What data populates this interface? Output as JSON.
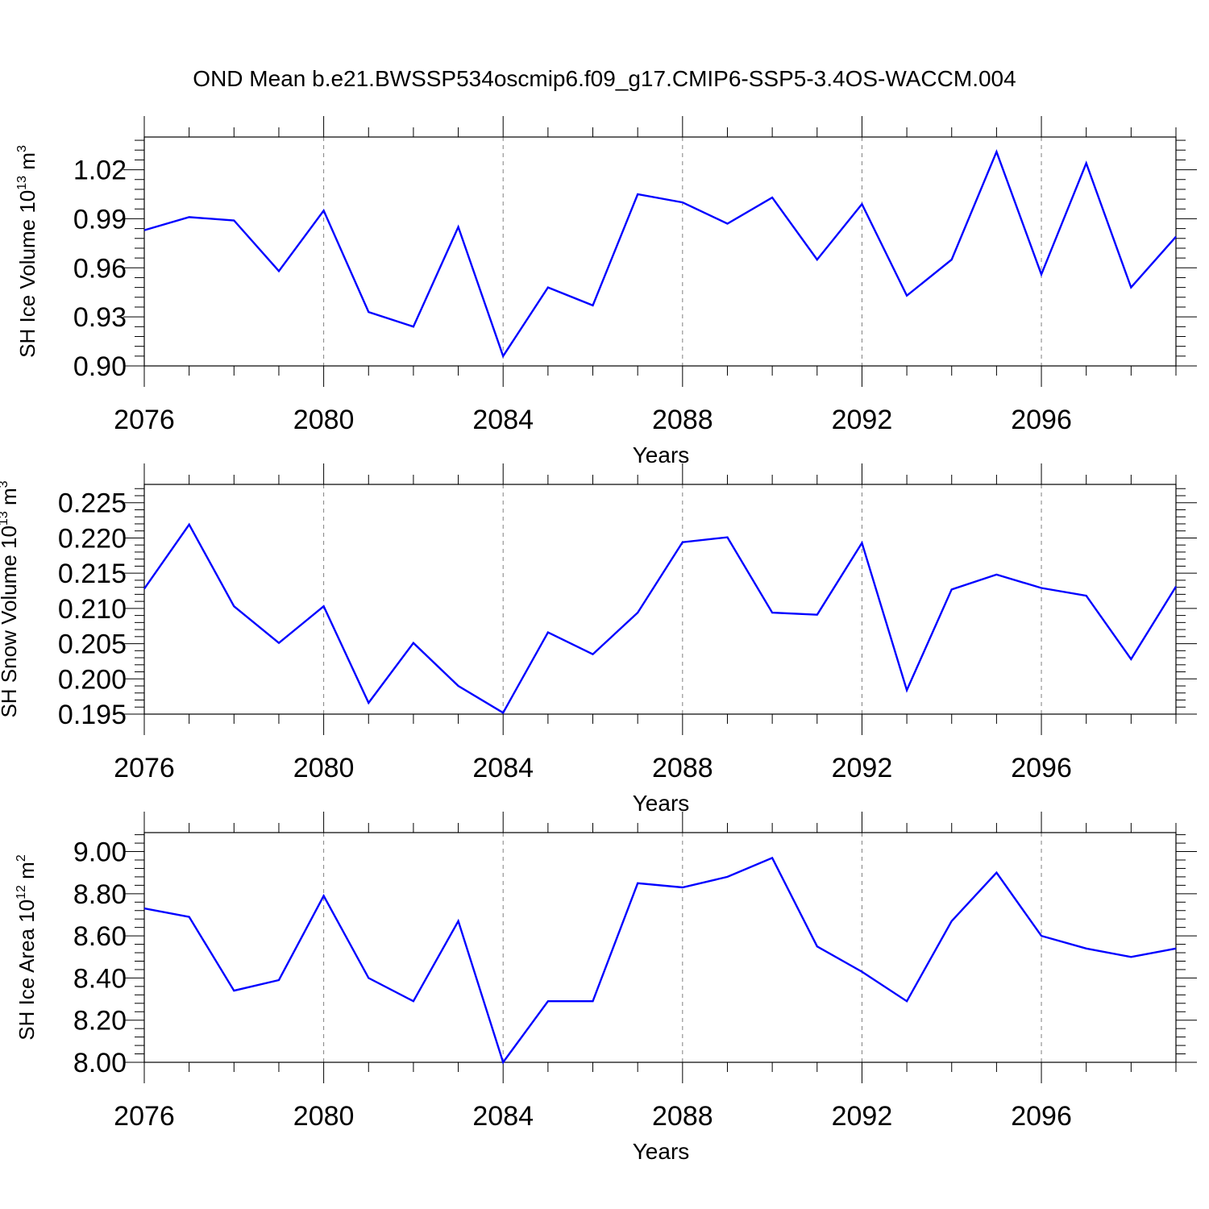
{
  "title": "OND Mean b.e21.BWSSP534oscmip6.f09_g17.CMIP6-SSP5-3.4OS-WACCM.004",
  "colors": {
    "line": "#0000ff",
    "axis": "#000000",
    "grid": "#808080"
  },
  "chart_data": [
    {
      "type": "line",
      "xlabel": "Years",
      "ylabel": {
        "text": "SH Ice Volume 10",
        "exponent": "13",
        "unit": " m",
        "unit_exponent": "3"
      },
      "xlim": [
        2076,
        2099
      ],
      "ylim": [
        0.9,
        1.04
      ],
      "yticks": [
        0.9,
        0.93,
        0.96,
        0.99,
        1.02
      ],
      "ytick_labels": [
        "0.90",
        "0.93",
        "0.96",
        "0.99",
        "1.02"
      ],
      "xticks": [
        2076,
        2080,
        2084,
        2088,
        2092,
        2096
      ],
      "xtick_labels": [
        "2076",
        "2080",
        "2084",
        "2088",
        "2092",
        "2096"
      ],
      "grid": "vertical dashed at major x ticks",
      "x": [
        2076,
        2077,
        2078,
        2079,
        2080,
        2081,
        2082,
        2083,
        2084,
        2085,
        2086,
        2087,
        2088,
        2089,
        2090,
        2091,
        2092,
        2093,
        2094,
        2095,
        2096,
        2097,
        2098,
        2099
      ],
      "y": [
        0.983,
        0.991,
        0.989,
        0.958,
        0.995,
        0.933,
        0.924,
        0.985,
        0.906,
        0.948,
        0.937,
        1.005,
        1.0,
        0.987,
        1.003,
        0.965,
        0.999,
        0.943,
        0.965,
        1.031,
        0.956,
        1.024,
        0.948,
        0.979
      ]
    },
    {
      "type": "line",
      "xlabel": "Years",
      "ylabel": {
        "text": "SH Snow Volume 10",
        "exponent": "13",
        "unit": " m",
        "unit_exponent": "3"
      },
      "xlim": [
        2076,
        2099
      ],
      "ylim": [
        0.195,
        0.2276
      ],
      "yticks": [
        0.195,
        0.2,
        0.205,
        0.21,
        0.215,
        0.22,
        0.225
      ],
      "ytick_labels": [
        "0.195",
        "0.200",
        "0.205",
        "0.210",
        "0.215",
        "0.220",
        "0.225"
      ],
      "xticks": [
        2076,
        2080,
        2084,
        2088,
        2092,
        2096
      ],
      "xtick_labels": [
        "2076",
        "2080",
        "2084",
        "2088",
        "2092",
        "2096"
      ],
      "grid": "vertical dashed at major x ticks",
      "x": [
        2076,
        2077,
        2078,
        2079,
        2080,
        2081,
        2082,
        2083,
        2084,
        2085,
        2086,
        2087,
        2088,
        2089,
        2090,
        2091,
        2092,
        2093,
        2094,
        2095,
        2096,
        2097,
        2098,
        2099
      ],
      "y": [
        0.2128,
        0.2219,
        0.2103,
        0.2051,
        0.2103,
        0.1966,
        0.2051,
        0.199,
        0.1952,
        0.2066,
        0.2035,
        0.2094,
        0.2194,
        0.2201,
        0.2094,
        0.2091,
        0.2193,
        0.1984,
        0.2127,
        0.2148,
        0.2129,
        0.2118,
        0.2028,
        0.2131
      ]
    },
    {
      "type": "line",
      "xlabel": "Years",
      "ylabel": {
        "text": "SH Ice Area 10",
        "exponent": "12",
        "unit": " m",
        "unit_exponent": "2"
      },
      "xlim": [
        2076,
        2099
      ],
      "ylim": [
        8.0,
        9.09
      ],
      "yticks": [
        8.0,
        8.2,
        8.4,
        8.6,
        8.8,
        9.0
      ],
      "ytick_labels": [
        "8.00",
        "8.20",
        "8.40",
        "8.60",
        "8.80",
        "9.00"
      ],
      "xticks": [
        2076,
        2080,
        2084,
        2088,
        2092,
        2096
      ],
      "xtick_labels": [
        "2076",
        "2080",
        "2084",
        "2088",
        "2092",
        "2096"
      ],
      "grid": "vertical dashed at major x ticks",
      "x": [
        2076,
        2077,
        2078,
        2079,
        2080,
        2081,
        2082,
        2083,
        2084,
        2085,
        2086,
        2087,
        2088,
        2089,
        2090,
        2091,
        2092,
        2093,
        2094,
        2095,
        2096,
        2097,
        2098,
        2099
      ],
      "y": [
        8.73,
        8.69,
        8.34,
        8.39,
        8.79,
        8.4,
        8.29,
        8.67,
        8.0,
        8.29,
        8.29,
        8.85,
        8.83,
        8.88,
        8.97,
        8.55,
        8.43,
        8.29,
        8.67,
        8.9,
        8.6,
        8.54,
        8.5,
        8.54
      ]
    }
  ]
}
